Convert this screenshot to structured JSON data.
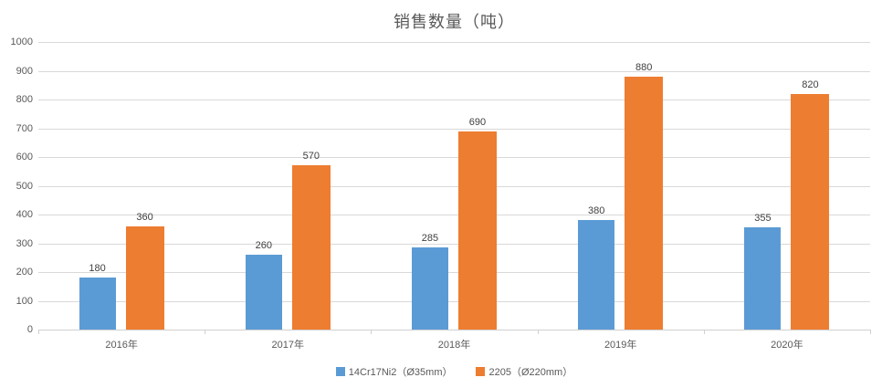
{
  "title": "销售数量（吨）",
  "chart_data": {
    "type": "bar",
    "title": "销售数量（吨）",
    "categories": [
      "2016年",
      "2017年",
      "2018年",
      "2019年",
      "2020年"
    ],
    "series": [
      {
        "name": "14Cr17Ni2（Ø35mm）",
        "color": "#5B9BD5",
        "values": [
          180,
          260,
          285,
          380,
          355
        ]
      },
      {
        "name": "2205（Ø220mm）",
        "color": "#ED7D31",
        "values": [
          360,
          570,
          690,
          880,
          820
        ]
      }
    ],
    "xlabel": "",
    "ylabel": "",
    "ylim": [
      0,
      1000
    ],
    "yticks": [
      0,
      100,
      200,
      300,
      400,
      500,
      600,
      700,
      800,
      900,
      1000
    ],
    "grid": true,
    "data_labels": true,
    "legend_position": "bottom"
  },
  "colors": {
    "background": "#FFFFFF",
    "gridline": "#D9D9D9",
    "axis_line": "#D0D0D0",
    "title_text": "#595959",
    "axis_text": "#595959",
    "data_label_text": "#404040",
    "series_blue": "#5B9BD5",
    "series_orange": "#ED7D31"
  }
}
